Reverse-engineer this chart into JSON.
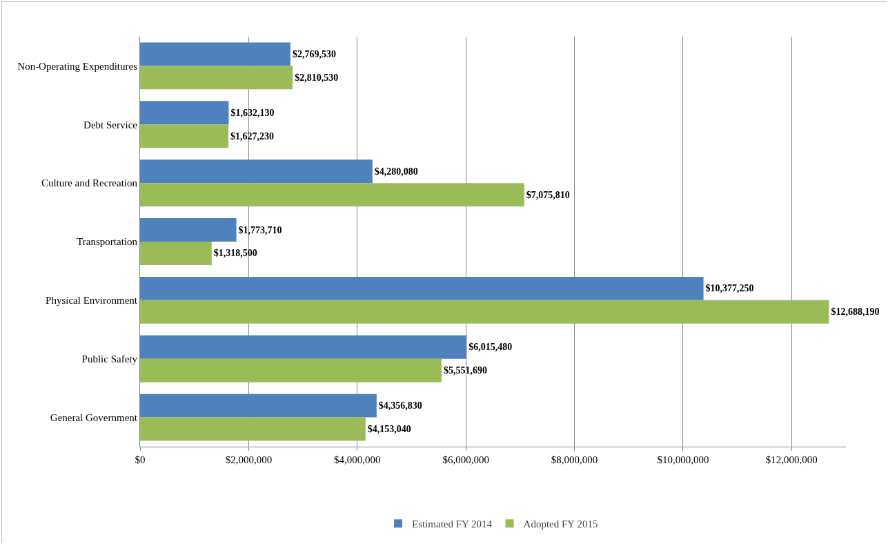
{
  "chart_data": {
    "type": "bar",
    "orientation": "horizontal",
    "categories": [
      "Non-Operating Expenditures",
      "Debt Service",
      "Culture and Recreation",
      "Transportation",
      "Physical Environment",
      "Public Safety",
      "General Government"
    ],
    "series": [
      {
        "name": "Estimated FY 2014",
        "color": "#4f81bd",
        "values": [
          2769530,
          1632130,
          4280080,
          1773710,
          10377250,
          6015480,
          4356830
        ],
        "value_labels": [
          "$2,769,530",
          "$1,632,130",
          "$4,280,080",
          "$1,773,710",
          "$10,377,250",
          "$6,015,480",
          "$4,356,830"
        ]
      },
      {
        "name": "Adopted FY 2015",
        "color": "#9bbb59",
        "values": [
          2810530,
          1627230,
          7075810,
          1318500,
          12688190,
          5551690,
          4153040
        ],
        "value_labels": [
          "$2,810,530",
          "$1,627,230",
          "$7,075,810",
          "$1,318,500",
          "$12,688,190",
          "$5,551,690",
          "$4,153,040"
        ]
      }
    ],
    "xlim": [
      0,
      13000000
    ],
    "xticks": [
      {
        "value": 0,
        "label": "$0"
      },
      {
        "value": 2000000,
        "label": "$2,000,000"
      },
      {
        "value": 4000000,
        "label": "$4,000,000"
      },
      {
        "value": 6000000,
        "label": "$6,000,000"
      },
      {
        "value": 8000000,
        "label": "$8,000,000"
      },
      {
        "value": 10000000,
        "label": "$10,000,000"
      },
      {
        "value": 12000000,
        "label": "$12,000,000"
      }
    ],
    "grid": "x",
    "legend": "bottom"
  }
}
